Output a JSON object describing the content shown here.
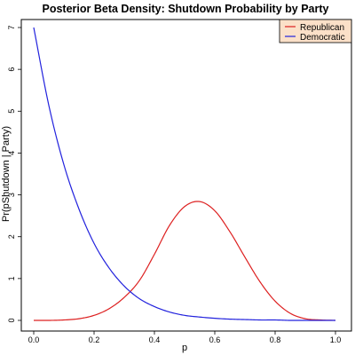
{
  "chart_data": {
    "type": "line",
    "title": "Posterior Beta Density: Shutdown Probability by Party",
    "xlabel": "p",
    "ylabel": "Pr(pShutdown | Party)",
    "xlim": [
      0,
      1
    ],
    "ylim": [
      0,
      7
    ],
    "x_ticks": [
      "0.0",
      "0.2",
      "0.4",
      "0.6",
      "0.8",
      "1.0"
    ],
    "y_ticks": [
      "0",
      "1",
      "2",
      "3",
      "4",
      "5",
      "6",
      "7"
    ],
    "grid": false,
    "legend_position": "top-right",
    "legend_background": "#fbe0c8",
    "series": [
      {
        "name": "Republican",
        "color": "#dd2020",
        "x": [
          0.0,
          0.05,
          0.1,
          0.15,
          0.2,
          0.25,
          0.3,
          0.35,
          0.4,
          0.45,
          0.5,
          0.55,
          0.6,
          0.65,
          0.7,
          0.75,
          0.8,
          0.85,
          0.9,
          0.95,
          1.0
        ],
        "values": [
          0.0,
          0.0,
          0.01,
          0.04,
          0.12,
          0.28,
          0.55,
          0.95,
          1.58,
          2.27,
          2.72,
          2.84,
          2.62,
          2.12,
          1.51,
          0.92,
          0.46,
          0.17,
          0.04,
          0.01,
          0.0
        ]
      },
      {
        "name": "Democratic",
        "color": "#2222dd",
        "x": [
          0.0,
          0.05,
          0.1,
          0.15,
          0.2,
          0.25,
          0.3,
          0.35,
          0.4,
          0.45,
          0.5,
          0.55,
          0.6,
          0.65,
          0.7,
          0.75,
          0.8,
          0.85,
          0.9,
          0.95,
          1.0
        ],
        "values": [
          7.0,
          5.14,
          3.72,
          2.66,
          1.84,
          1.25,
          0.82,
          0.52,
          0.33,
          0.2,
          0.12,
          0.08,
          0.05,
          0.03,
          0.02,
          0.01,
          0.01,
          0.0,
          0.0,
          0.0,
          0.0
        ]
      }
    ]
  }
}
